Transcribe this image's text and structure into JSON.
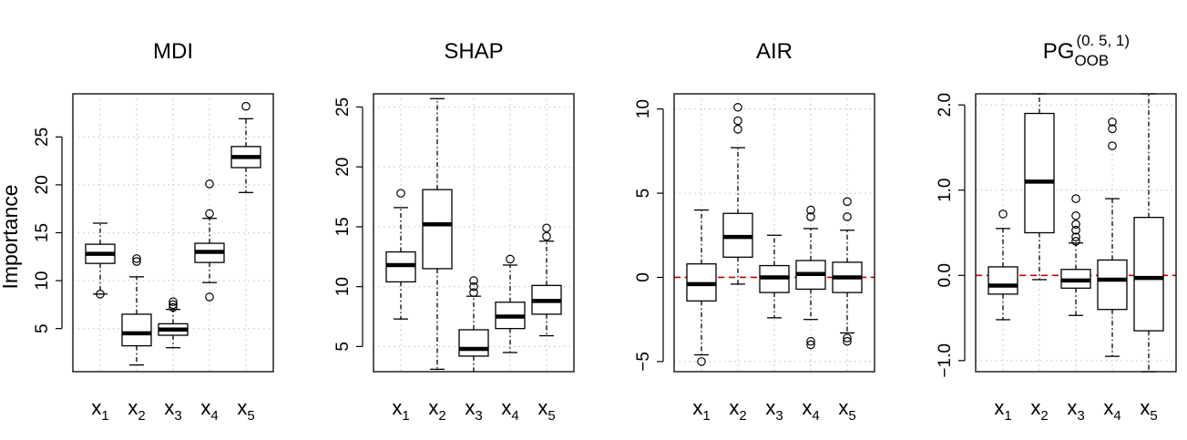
{
  "ylabel": "Importance",
  "chart_data": [
    {
      "type": "boxplot",
      "title": "MDI",
      "title_sup": "",
      "title_sub": "",
      "ylim": [
        0.5,
        29.5
      ],
      "yticks": [
        5,
        10,
        15,
        20,
        25
      ],
      "yticklabels": [
        "5",
        "10",
        "15",
        "20",
        "25"
      ],
      "grid": true,
      "refline": null,
      "categories": [
        {
          "base": "x",
          "sub": "1"
        },
        {
          "base": "x",
          "sub": "2"
        },
        {
          "base": "x",
          "sub": "3"
        },
        {
          "base": "x",
          "sub": "4"
        },
        {
          "base": "x",
          "sub": "5"
        }
      ],
      "boxes": [
        {
          "wlo": 8.6,
          "q1": 11.8,
          "med": 12.8,
          "q3": 13.8,
          "whi": 16.0,
          "out": [
            8.6
          ]
        },
        {
          "wlo": 1.2,
          "q1": 3.2,
          "med": 4.5,
          "q3": 6.5,
          "whi": 10.4,
          "out": [
            12.0,
            12.3
          ]
        },
        {
          "wlo": 3.0,
          "q1": 4.3,
          "med": 4.9,
          "q3": 5.5,
          "whi": 7.0,
          "out": [
            7.2,
            7.5,
            7.8
          ]
        },
        {
          "wlo": 9.8,
          "q1": 11.9,
          "med": 13.0,
          "q3": 13.9,
          "whi": 16.5,
          "out": [
            8.3,
            17.0,
            20.1
          ]
        },
        {
          "wlo": 19.2,
          "q1": 21.8,
          "med": 22.9,
          "q3": 24.0,
          "whi": 26.9,
          "out": [
            28.2
          ]
        }
      ]
    },
    {
      "type": "boxplot",
      "title": "SHAP",
      "title_sup": "",
      "title_sub": "",
      "ylim": [
        2.9,
        26.1
      ],
      "yticks": [
        5,
        10,
        15,
        20,
        25
      ],
      "yticklabels": [
        "5",
        "10",
        "15",
        "20",
        "25"
      ],
      "grid": true,
      "refline": null,
      "categories": [
        {
          "base": "x",
          "sub": "1"
        },
        {
          "base": "x",
          "sub": "2"
        },
        {
          "base": "x",
          "sub": "3"
        },
        {
          "base": "x",
          "sub": "4"
        },
        {
          "base": "x",
          "sub": "5"
        }
      ],
      "boxes": [
        {
          "wlo": 7.3,
          "q1": 10.4,
          "med": 11.8,
          "q3": 12.9,
          "whi": 16.6,
          "out": [
            17.8
          ]
        },
        {
          "wlo": 3.1,
          "q1": 11.5,
          "med": 15.2,
          "q3": 18.1,
          "whi": 25.7,
          "out": []
        },
        {
          "wlo": 2.7,
          "q1": 4.2,
          "med": 4.8,
          "q3": 6.4,
          "whi": 9.2,
          "out": [
            9.5,
            10.0,
            10.5
          ]
        },
        {
          "wlo": 4.5,
          "q1": 6.5,
          "med": 7.5,
          "q3": 8.7,
          "whi": 11.8,
          "out": [
            12.3
          ]
        },
        {
          "wlo": 5.9,
          "q1": 7.7,
          "med": 8.8,
          "q3": 10.1,
          "whi": 13.8,
          "out": [
            14.2,
            14.9
          ]
        }
      ]
    },
    {
      "type": "boxplot",
      "title": "AIR",
      "title_sup": "",
      "title_sub": "",
      "ylim": [
        -5.6,
        10.9
      ],
      "yticks": [
        -5,
        0,
        5,
        10
      ],
      "yticklabels": [
        "−5",
        "0",
        "5",
        "10"
      ],
      "grid": true,
      "refline": 0,
      "categories": [
        {
          "base": "x",
          "sub": "1"
        },
        {
          "base": "x",
          "sub": "2"
        },
        {
          "base": "x",
          "sub": "3"
        },
        {
          "base": "x",
          "sub": "4"
        },
        {
          "base": "x",
          "sub": "5"
        }
      ],
      "boxes": [
        {
          "wlo": -4.6,
          "q1": -1.4,
          "med": -0.4,
          "q3": 0.8,
          "whi": 4.0,
          "out": [
            -5.0
          ]
        },
        {
          "wlo": -0.4,
          "q1": 1.2,
          "med": 2.4,
          "q3": 3.8,
          "whi": 7.7,
          "out": [
            8.8,
            9.3,
            10.1
          ]
        },
        {
          "wlo": -2.4,
          "q1": -0.9,
          "med": 0.0,
          "q3": 0.7,
          "whi": 2.5,
          "out": []
        },
        {
          "wlo": -2.5,
          "q1": -0.7,
          "med": 0.2,
          "q3": 1.0,
          "whi": 2.9,
          "out": [
            3.6,
            4.0,
            -3.8,
            -4.0
          ]
        },
        {
          "wlo": -3.3,
          "q1": -0.9,
          "med": 0.0,
          "q3": 0.9,
          "whi": 2.8,
          "out": [
            3.6,
            4.5,
            -3.6,
            -3.8
          ]
        }
      ]
    },
    {
      "type": "boxplot",
      "title": "PG",
      "title_sup": "(0. 5, 1)",
      "title_sub": "OOB",
      "ylim": [
        -1.13,
        2.13
      ],
      "yticks": [
        -1.0,
        0.0,
        1.0,
        2.0
      ],
      "yticklabels": [
        "−1.0",
        "0.0",
        "1.0",
        "2.0"
      ],
      "grid": true,
      "refline": 0,
      "categories": [
        {
          "base": "x",
          "sub": "1"
        },
        {
          "base": "x",
          "sub": "2"
        },
        {
          "base": "x",
          "sub": "3"
        },
        {
          "base": "x",
          "sub": "4"
        },
        {
          "base": "x",
          "sub": "5"
        }
      ],
      "boxes": [
        {
          "wlo": -0.52,
          "q1": -0.22,
          "med": -0.12,
          "q3": 0.1,
          "whi": 0.55,
          "out": [
            0.72
          ]
        },
        {
          "wlo": -0.05,
          "q1": 0.5,
          "med": 1.1,
          "q3": 1.9,
          "whi": 2.13,
          "out": []
        },
        {
          "wlo": -0.47,
          "q1": -0.15,
          "med": -0.06,
          "q3": 0.07,
          "whi": 0.38,
          "out": [
            0.4,
            0.45,
            0.53,
            0.6,
            0.7,
            0.9
          ]
        },
        {
          "wlo": -0.95,
          "q1": -0.4,
          "med": -0.05,
          "q3": 0.18,
          "whi": 0.9,
          "out": [
            1.52,
            1.72,
            1.8
          ]
        },
        {
          "wlo": -1.13,
          "q1": -0.65,
          "med": -0.03,
          "q3": 0.68,
          "whi": 2.13,
          "out": []
        }
      ]
    }
  ],
  "colors": {
    "ink": "#000000",
    "grid": "#c8c8c8",
    "refline": "#cc0000",
    "background": "#ffffff"
  }
}
